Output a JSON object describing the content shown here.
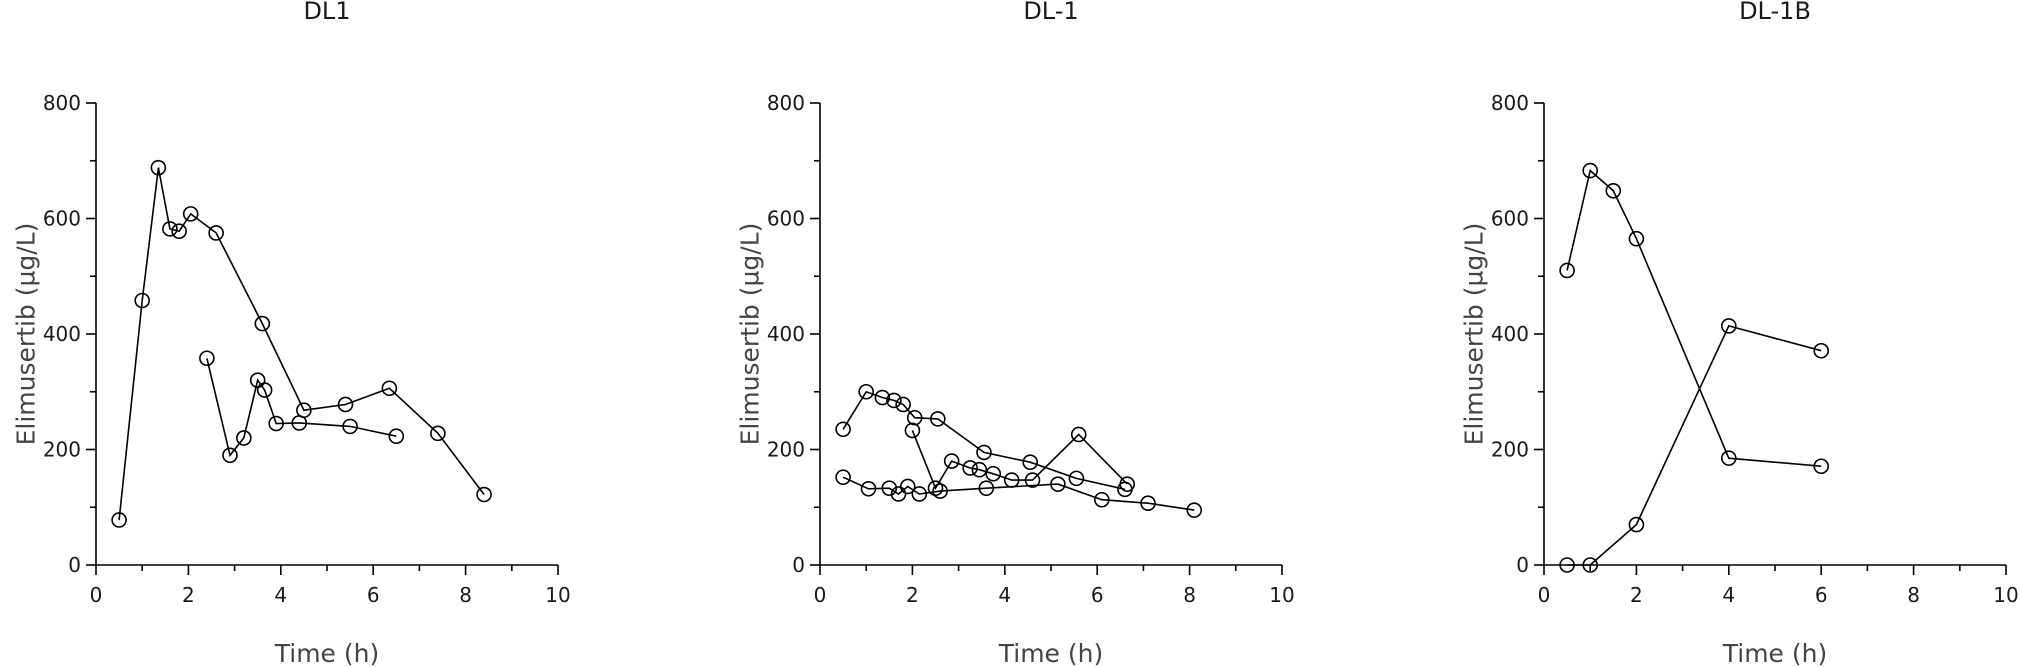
{
  "chart_data": [
    {
      "type": "line",
      "title": "DL1",
      "xlabel": "Time (h)",
      "ylabel": "Elimusertib (µg/L)",
      "xlim": [
        0,
        10
      ],
      "ylim": [
        0,
        800
      ],
      "xticks": [
        0,
        2,
        4,
        6,
        8,
        10
      ],
      "yticks": [
        0,
        200,
        400,
        600,
        800
      ],
      "grid": false,
      "marker": "open-circle",
      "series": [
        {
          "x": [
            0.5,
            1.0,
            1.35,
            1.6,
            1.8,
            2.05,
            2.6,
            3.6,
            4.5,
            5.4,
            6.35,
            7.4,
            8.4
          ],
          "y": [
            78,
            458,
            688,
            582,
            578,
            608,
            575,
            418,
            268,
            278,
            306,
            228,
            122
          ]
        },
        {
          "x": [
            2.4,
            2.9,
            3.2,
            3.5,
            3.65,
            3.9,
            4.4,
            5.5,
            6.5
          ],
          "y": [
            358,
            190,
            220,
            320,
            303,
            245,
            246,
            240,
            223
          ]
        }
      ]
    },
    {
      "type": "line",
      "title": "DL-1",
      "xlabel": "Time (h)",
      "ylabel": "Elimusertib (µg/L)",
      "xlim": [
        0,
        10
      ],
      "ylim": [
        0,
        800
      ],
      "xticks": [
        0,
        2,
        4,
        6,
        8,
        10
      ],
      "yticks": [
        0,
        200,
        400,
        600,
        800
      ],
      "grid": false,
      "marker": "open-circle",
      "series": [
        {
          "x": [
            0.5,
            1.0,
            1.35,
            1.6,
            1.8,
            2.05,
            2.55,
            3.55,
            4.55,
            5.55,
            6.6
          ],
          "y": [
            235,
            300,
            290,
            285,
            278,
            255,
            253,
            195,
            178,
            150,
            131
          ]
        },
        {
          "x": [
            2.0,
            2.5,
            2.85,
            3.25,
            3.45,
            3.75,
            4.15,
            4.6,
            5.6,
            6.65
          ],
          "y": [
            233,
            133,
            180,
            168,
            165,
            158,
            147,
            147,
            226,
            140
          ]
        },
        {
          "x": [
            0.5,
            1.05,
            1.5,
            1.7,
            1.9,
            2.15,
            2.6,
            3.6,
            5.15,
            6.1,
            7.1,
            8.1
          ],
          "y": [
            152,
            132,
            133,
            123,
            136,
            123,
            128,
            133,
            140,
            113,
            107,
            95
          ]
        }
      ]
    },
    {
      "type": "line",
      "title": "DL-1B",
      "xlabel": "Time (h)",
      "ylabel": "Elimusertib (µg/L)",
      "xlim": [
        0,
        10
      ],
      "ylim": [
        0,
        800
      ],
      "xticks": [
        0,
        2,
        4,
        6,
        8,
        10
      ],
      "yticks": [
        0,
        200,
        400,
        600,
        800
      ],
      "grid": false,
      "marker": "open-circle",
      "series": [
        {
          "x": [
            0.5,
            1.0,
            1.5,
            2.0,
            4.0,
            6.0
          ],
          "y": [
            510,
            683,
            648,
            565,
            185,
            171
          ]
        },
        {
          "x": [
            0.5,
            1.0,
            2.0,
            4.0,
            6.0
          ],
          "y": [
            0,
            0,
            70,
            414,
            371
          ]
        }
      ]
    }
  ]
}
